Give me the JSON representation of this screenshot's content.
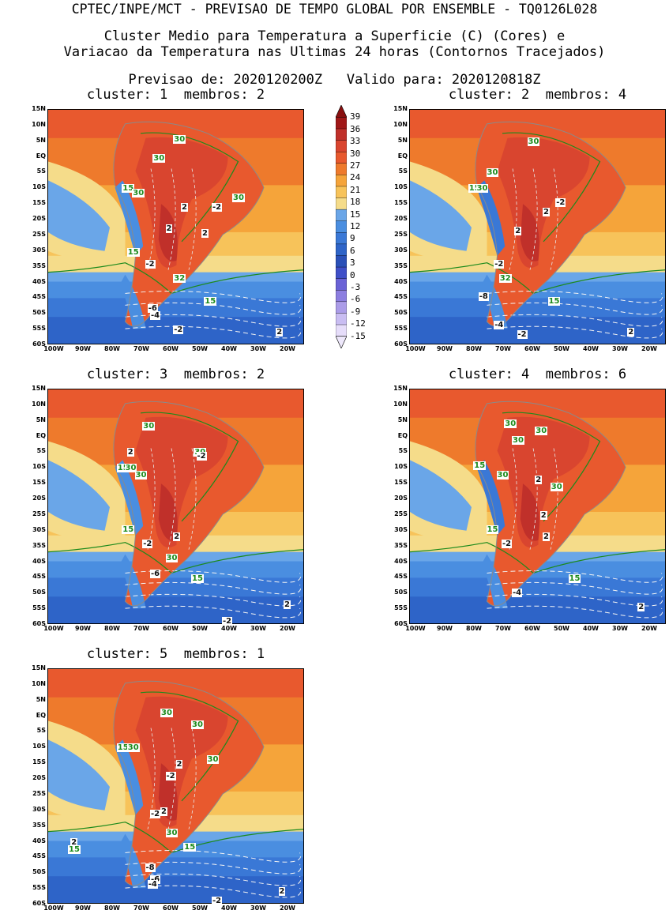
{
  "header": {
    "title": "CPTEC/INPE/MCT - PREVISAO DE TEMPO GLOBAL POR ENSEMBLE - TQ0126L028",
    "subtitle_line1": "Cluster Medio para Temperatura a Superficie (C) (Cores) e",
    "subtitle_line2": "Variacao da Temperatura nas Ultimas 24 horas (Contornos Tracejados)",
    "forecast_label": "Previsao de: 2020120200Z",
    "valid_label": "Valido para: 2020120818Z"
  },
  "chart_data": {
    "type": "heatmap",
    "map_region": "South America",
    "lat_ticks": [
      "15N",
      "10N",
      "5N",
      "EQ",
      "5S",
      "10S",
      "15S",
      "20S",
      "25S",
      "30S",
      "35S",
      "40S",
      "45S",
      "50S",
      "55S",
      "60S"
    ],
    "lon_ticks": [
      "100W",
      "90W",
      "80W",
      "70W",
      "60W",
      "50W",
      "40W",
      "30W",
      "20W"
    ],
    "colorbar": {
      "units": "C",
      "levels": [
        "39",
        "36",
        "33",
        "30",
        "27",
        "24",
        "21",
        "18",
        "15",
        "12",
        "9",
        "6",
        "3",
        "0",
        "-3",
        "-6",
        "-9",
        "-12",
        "-15"
      ],
      "colors": [
        "#a01818",
        "#c0302a",
        "#d9452f",
        "#e8592e",
        "#ee7a2c",
        "#f5a43a",
        "#f7c35a",
        "#f5dc8a",
        "#6aa6e8",
        "#4a8ee0",
        "#3a78d6",
        "#2e64c8",
        "#2a50b8",
        "#3f4fc8",
        "#6a62d6",
        "#8c7ee0",
        "#ab9ce8",
        "#c9bdf2",
        "#e6ddfa"
      ]
    },
    "panels": [
      {
        "cluster": "1",
        "members": "2",
        "title_cluster": "cluster: 1",
        "title_members": "membros: 2",
        "contour_labels": [
          {
            "t": "30",
            "c": "g"
          },
          {
            "t": "30",
            "c": "g"
          },
          {
            "t": "15",
            "c": "g"
          },
          {
            "t": "30",
            "c": "g"
          },
          {
            "t": "30",
            "c": "g"
          },
          {
            "t": "2",
            "c": "k"
          },
          {
            "t": "-2",
            "c": "k"
          },
          {
            "t": "2",
            "c": "k"
          },
          {
            "t": "2",
            "c": "k"
          },
          {
            "t": "15",
            "c": "g"
          },
          {
            "t": "-2",
            "c": "k"
          },
          {
            "t": "32",
            "c": "g"
          },
          {
            "t": "15",
            "c": "g"
          },
          {
            "t": "-6",
            "c": "k"
          },
          {
            "t": "-4",
            "c": "k"
          },
          {
            "t": "-2",
            "c": "k"
          },
          {
            "t": "2",
            "c": "k"
          }
        ]
      },
      {
        "cluster": "2",
        "members": "4",
        "title_cluster": "cluster: 2",
        "title_members": "membros: 4",
        "contour_labels": [
          {
            "t": "30",
            "c": "g"
          },
          {
            "t": "30",
            "c": "g"
          },
          {
            "t": "15",
            "c": "g"
          },
          {
            "t": "30",
            "c": "g"
          },
          {
            "t": "2",
            "c": "k"
          },
          {
            "t": "-2",
            "c": "k"
          },
          {
            "t": "2",
            "c": "k"
          },
          {
            "t": "-2",
            "c": "k"
          },
          {
            "t": "32",
            "c": "g"
          },
          {
            "t": "15",
            "c": "g"
          },
          {
            "t": "-8",
            "c": "k"
          },
          {
            "t": "-4",
            "c": "k"
          },
          {
            "t": "-2",
            "c": "k"
          },
          {
            "t": "2",
            "c": "k"
          }
        ]
      },
      {
        "cluster": "3",
        "members": "2",
        "title_cluster": "cluster: 3",
        "title_members": "membros: 2",
        "contour_labels": [
          {
            "t": "30",
            "c": "g"
          },
          {
            "t": "2",
            "c": "k"
          },
          {
            "t": "30",
            "c": "g"
          },
          {
            "t": "-2",
            "c": "k"
          },
          {
            "t": "15",
            "c": "g"
          },
          {
            "t": "30",
            "c": "g"
          },
          {
            "t": "30",
            "c": "g"
          },
          {
            "t": "15",
            "c": "g"
          },
          {
            "t": "-2",
            "c": "k"
          },
          {
            "t": "2",
            "c": "k"
          },
          {
            "t": "30",
            "c": "g"
          },
          {
            "t": "-6",
            "c": "k"
          },
          {
            "t": "15",
            "c": "g"
          },
          {
            "t": "-2",
            "c": "k"
          },
          {
            "t": "2",
            "c": "k"
          }
        ]
      },
      {
        "cluster": "4",
        "members": "6",
        "title_cluster": "cluster: 4",
        "title_members": "membros: 6",
        "contour_labels": [
          {
            "t": "30",
            "c": "g"
          },
          {
            "t": "30",
            "c": "g"
          },
          {
            "t": "30",
            "c": "g"
          },
          {
            "t": "15",
            "c": "g"
          },
          {
            "t": "30",
            "c": "g"
          },
          {
            "t": "2",
            "c": "k"
          },
          {
            "t": "30",
            "c": "g"
          },
          {
            "t": "2",
            "c": "k"
          },
          {
            "t": "15",
            "c": "g"
          },
          {
            "t": "-2",
            "c": "k"
          },
          {
            "t": "2",
            "c": "k"
          },
          {
            "t": "15",
            "c": "g"
          },
          {
            "t": "-4",
            "c": "k"
          },
          {
            "t": "2",
            "c": "k"
          }
        ]
      },
      {
        "cluster": "5",
        "members": "1",
        "title_cluster": "cluster: 5",
        "title_members": "membros: 1",
        "contour_labels": [
          {
            "t": "30",
            "c": "g"
          },
          {
            "t": "30",
            "c": "g"
          },
          {
            "t": "15",
            "c": "g"
          },
          {
            "t": "30",
            "c": "g"
          },
          {
            "t": "2",
            "c": "k"
          },
          {
            "t": "30",
            "c": "g"
          },
          {
            "t": "-2",
            "c": "k"
          },
          {
            "t": "-2",
            "c": "k"
          },
          {
            "t": "2",
            "c": "k"
          },
          {
            "t": "30",
            "c": "g"
          },
          {
            "t": "15",
            "c": "g"
          },
          {
            "t": "2",
            "c": "k"
          },
          {
            "t": "15",
            "c": "g"
          },
          {
            "t": "-8",
            "c": "k"
          },
          {
            "t": "-6",
            "c": "k"
          },
          {
            "t": "-4",
            "c": "k"
          },
          {
            "t": "-2",
            "c": "k"
          },
          {
            "t": "2",
            "c": "k"
          }
        ]
      }
    ]
  }
}
